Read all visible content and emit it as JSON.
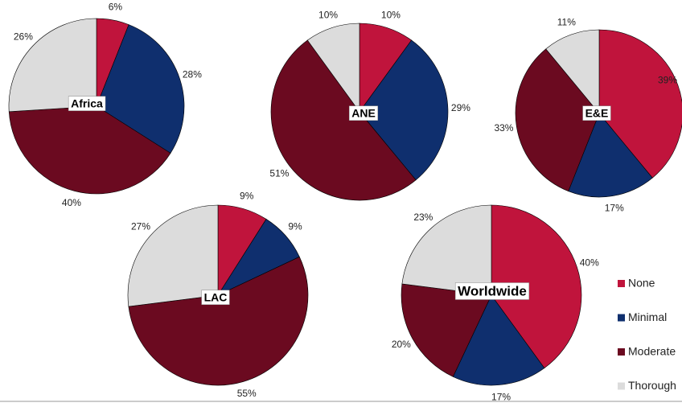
{
  "chart_data": [
    {
      "type": "pie",
      "title": "Africa",
      "values": [
        6,
        28,
        40,
        26
      ],
      "value_labels": [
        "6%",
        "28%",
        "40%",
        "26%"
      ]
    },
    {
      "type": "pie",
      "title": "ANE",
      "values": [
        10,
        29,
        51,
        10
      ],
      "value_labels": [
        "10%",
        "29%",
        "51%",
        "10%"
      ]
    },
    {
      "type": "pie",
      "title": "E&E",
      "values": [
        39,
        17,
        33,
        11
      ],
      "value_labels": [
        "39%",
        "17%",
        "33%",
        "11%"
      ]
    },
    {
      "type": "pie",
      "title": "LAC",
      "values": [
        9,
        9,
        55,
        27
      ],
      "value_labels": [
        "9%",
        "9%",
        "55%",
        "27%"
      ]
    },
    {
      "type": "pie",
      "title": "Worldwide",
      "values": [
        40,
        17,
        20,
        23
      ],
      "value_labels": [
        "40%",
        "17%",
        "20%",
        "23%"
      ]
    }
  ],
  "legend": {
    "labels": [
      "None",
      "Minimal",
      "Moderate",
      "Thorough"
    ],
    "colors": [
      "#c0143c",
      "#0f2f6e",
      "#6b0a20",
      "#dcdcdc"
    ]
  }
}
